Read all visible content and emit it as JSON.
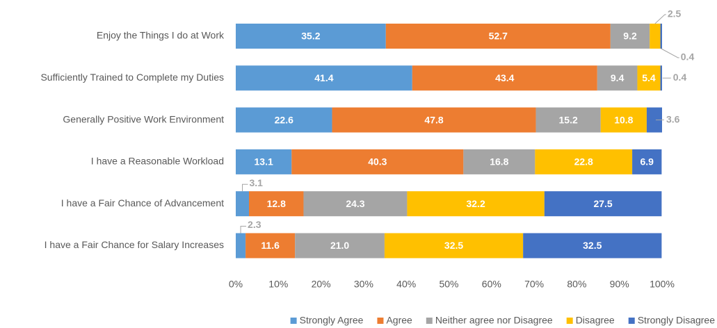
{
  "chart_data": {
    "type": "stacked_bar_horizontal",
    "categories": [
      "Enjoy the Things I do at Work",
      "Sufficiently Trained to Complete my Duties",
      "Generally Positive Work Environment",
      "I have a Reasonable Workload",
      "I have a Fair Chance of Advancement",
      "I have a Fair Chance for Salary Increases"
    ],
    "series": [
      {
        "name": "Strongly Agree",
        "color": "#5b9bd5",
        "values": [
          35.2,
          41.4,
          22.6,
          13.1,
          3.1,
          2.3
        ],
        "value_labels": [
          "35.2",
          "41.4",
          "22.6",
          "13.1",
          "3.1",
          "2.3"
        ]
      },
      {
        "name": "Agree",
        "color": "#ed7d31",
        "values": [
          52.7,
          43.4,
          47.8,
          40.3,
          12.8,
          11.6
        ],
        "value_labels": [
          "52.7",
          "43.4",
          "47.8",
          "40.3",
          "12.8",
          "11.6"
        ]
      },
      {
        "name": "Neither agree nor Disagree",
        "color": "#a5a5a5",
        "values": [
          9.2,
          9.4,
          15.2,
          16.8,
          24.3,
          21.0
        ],
        "value_labels": [
          "9.2",
          "9.4",
          "15.2",
          "16.8",
          "24.3",
          "21.0"
        ]
      },
      {
        "name": "Disagree",
        "color": "#ffc000",
        "values": [
          2.5,
          5.4,
          10.8,
          22.8,
          32.2,
          32.5
        ],
        "value_labels": [
          "2.5",
          "5.4",
          "10.8",
          "22.8",
          "32.2",
          "32.5"
        ]
      },
      {
        "name": "Strongly Disagree",
        "color": "#4472c4",
        "values": [
          0.4,
          0.4,
          3.6,
          6.9,
          27.5,
          32.5
        ],
        "value_labels": [
          "0.4",
          "0.4",
          "3.6",
          "6.9",
          "27.5",
          "32.5"
        ]
      }
    ],
    "xlim": [
      0,
      100
    ],
    "xticks": [
      {
        "value": 0,
        "label": "0%"
      },
      {
        "value": 10,
        "label": "10%"
      },
      {
        "value": 20,
        "label": "20%"
      },
      {
        "value": 30,
        "label": "30%"
      },
      {
        "value": 40,
        "label": "40%"
      },
      {
        "value": 50,
        "label": "50%"
      },
      {
        "value": 60,
        "label": "60%"
      },
      {
        "value": 70,
        "label": "70%"
      },
      {
        "value": 80,
        "label": "80%"
      },
      {
        "value": 90,
        "label": "90%"
      },
      {
        "value": 100,
        "label": "100%"
      }
    ],
    "grid": false,
    "legend": "bottom"
  }
}
